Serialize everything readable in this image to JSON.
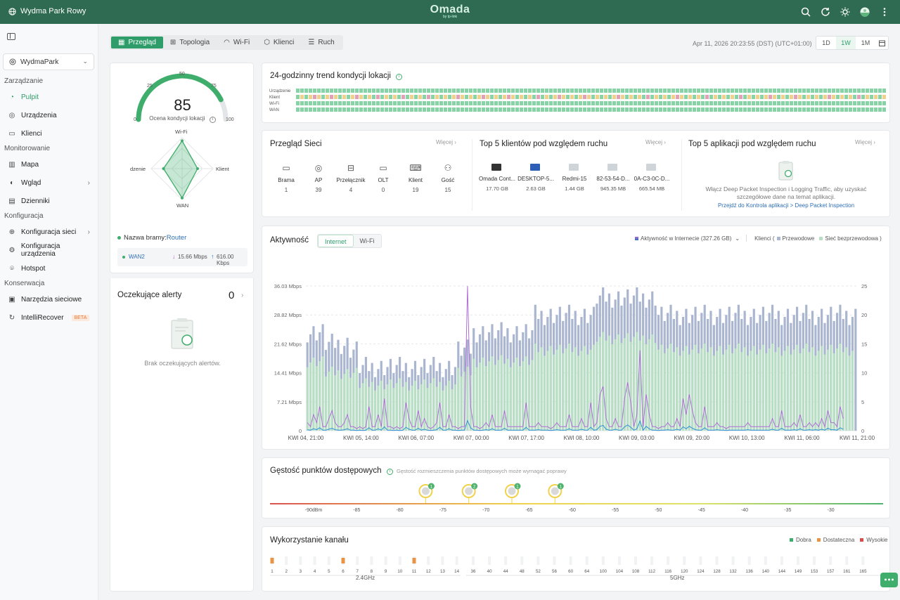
{
  "topbar": {
    "site_name": "Wydma Park Rowy",
    "logo": "Omada",
    "logo_sub": "by tp-link",
    "icons": [
      "search-icon",
      "refresh-icon",
      "theme-icon",
      "avatar",
      "more-icon"
    ]
  },
  "sidebar": {
    "site_select": "WydmaPark",
    "sections": [
      {
        "title": "Zarządzanie",
        "items": [
          {
            "label": "Pulpit",
            "icon": "dashboard-icon",
            "active": true
          },
          {
            "label": "Urządzenia",
            "icon": "devices-icon"
          },
          {
            "label": "Klienci",
            "icon": "clients-icon"
          }
        ]
      },
      {
        "title": "Monitorowanie",
        "items": [
          {
            "label": "Mapa",
            "icon": "map-icon"
          },
          {
            "label": "Wgląd",
            "icon": "insight-icon",
            "arrow": true
          },
          {
            "label": "Dzienniki",
            "icon": "logs-icon"
          }
        ]
      },
      {
        "title": "Konfiguracja",
        "items": [
          {
            "label": "Konfiguracja sieci",
            "icon": "network-config-icon",
            "arrow": true
          },
          {
            "label": "Konfiguracja urządzenia",
            "icon": "device-config-icon"
          },
          {
            "label": "Hotspot",
            "icon": "hotspot-icon"
          }
        ]
      },
      {
        "title": "Konserwacja",
        "items": [
          {
            "label": "Narzędzia sieciowe",
            "icon": "tools-icon"
          },
          {
            "label": "IntelliRecover",
            "icon": "recover-icon",
            "badge": "BETA"
          }
        ]
      }
    ]
  },
  "tabs": [
    {
      "label": "Przegląd",
      "icon": "overview-icon",
      "active": true
    },
    {
      "label": "Topologia",
      "icon": "topology-icon"
    },
    {
      "label": "Wi-Fi",
      "icon": "wifi-icon"
    },
    {
      "label": "Klienci",
      "icon": "clients-icon"
    },
    {
      "label": "Ruch",
      "icon": "traffic-icon"
    }
  ],
  "datetime": "Apr 11, 2026 20:23:55 (DST) (UTC+01:00)",
  "range_buttons": [
    "1D",
    "1W",
    "1M"
  ],
  "range_active": "1W",
  "health": {
    "score": "85",
    "score_value": 85,
    "score_label": "Ocena kondycji lokacji",
    "gauge_ticks": [
      "0",
      "25",
      "50",
      "75",
      "100"
    ],
    "radar_labels": {
      "top": "Wi-Fi",
      "right": "Klient",
      "bottom": "WAN",
      "left": "dzenie"
    },
    "gateway_label": "Nazwa bramy:",
    "gateway_name": "Router",
    "wan_name": "WAN2",
    "wan_down": "15.66 Mbps",
    "wan_up": "616.00 Kbps"
  },
  "alerts": {
    "title": "Oczekujące alerty",
    "count": "0",
    "empty": "Brak oczekujących alertów."
  },
  "trend": {
    "title": "24-godzinny trend kondycji lokacji",
    "rows": [
      "Urządzenie",
      "Klient",
      "Wi-Fi",
      "WAN"
    ]
  },
  "network_overview": {
    "title": "Przegląd Sieci",
    "more": "Więcej",
    "items": [
      {
        "label": "Brama",
        "value": "1",
        "icon": "gateway-icon"
      },
      {
        "label": "AP",
        "value": "39",
        "icon": "ap-icon"
      },
      {
        "label": "Przełącznik",
        "value": "4",
        "icon": "switch-icon"
      },
      {
        "label": "OLT",
        "value": "0",
        "icon": "olt-icon"
      },
      {
        "label": "Klient",
        "value": "19",
        "icon": "client-icon"
      },
      {
        "label": "Gość",
        "value": "15",
        "icon": "guest-icon"
      }
    ]
  },
  "top_clients": {
    "title": "Top 5 klientów pod względem ruchu",
    "more": "Więcej",
    "items": [
      {
        "name": "Omada Cont...",
        "value": "17.70 GB",
        "icon": "monitor-icon"
      },
      {
        "name": "DESKTOP-5...",
        "value": "2.63 GB",
        "icon": "desktop-icon"
      },
      {
        "name": "Redmi-15",
        "value": "1.44 GB",
        "icon": "device-icon"
      },
      {
        "name": "82-53-54-D...",
        "value": "945.35 MB",
        "icon": "device-icon"
      },
      {
        "name": "0A-C3-0C-D...",
        "value": "665.54 MB",
        "icon": "device-icon"
      }
    ]
  },
  "top_apps": {
    "title": "Top 5 aplikacji pod względem ruchu",
    "more": "Więcej",
    "text": "Włącz Deep Packet Inspection i Logging Traffic, aby uzyskać szczegółowe dane na temat aplikacji.",
    "link": "Przejdź do Kontrola aplikacji > Deep Packet Inspection"
  },
  "activity": {
    "title": "Aktywność",
    "tabs": [
      "Internet",
      "Wi-Fi"
    ],
    "active_tab": "Internet",
    "legend_internet": "Aktywność w Internecie (327.26 GB)",
    "legend_clients": "Klienci (",
    "legend_wired": "Przewodowe",
    "legend_wireless": "Sieć bezprzewodowa )"
  },
  "chart_data": {
    "type": "bar",
    "title": "",
    "x_ticks": [
      "KWI 04, 21:00",
      "KWI 05, 14:00",
      "KWI 06, 07:00",
      "KWI 07, 00:00",
      "KWI 07, 17:00",
      "KWI 08, 10:00",
      "KWI 09, 03:00",
      "KWI 09, 20:00",
      "KWI 10, 13:00",
      "KWI 11, 06:00",
      "KWI 11, 21:00"
    ],
    "y_left_ticks": [
      "0",
      "7.21 Mbps",
      "14.41 Mbps",
      "21.62 Mbps",
      "28.82 Mbps",
      "36.03 Mbps"
    ],
    "y_right_ticks": [
      "0",
      "5",
      "10",
      "15",
      "20",
      "25"
    ],
    "y_left_max_mbps": 36.03,
    "y_right_max": 25,
    "series": [
      {
        "name": "Przewodowe",
        "color": "#aab6d0",
        "values": [
          17,
          17,
          17,
          17,
          17,
          17,
          15,
          15,
          15,
          15,
          15,
          15,
          15,
          15,
          14,
          14,
          14,
          11,
          11,
          11,
          11,
          11,
          11,
          11,
          11,
          11,
          11,
          11,
          11,
          11,
          11,
          11,
          11,
          11,
          11,
          11,
          11,
          11,
          11,
          11,
          11,
          11,
          11,
          11,
          11,
          11,
          11,
          11,
          11,
          14,
          14,
          14,
          14,
          14,
          17,
          17,
          17,
          17,
          17,
          17,
          17,
          17,
          17,
          17,
          17,
          17,
          17,
          17,
          17,
          17,
          17,
          17,
          17,
          17,
          20,
          20,
          20,
          20,
          20,
          20,
          20,
          20,
          20,
          20,
          20,
          20,
          20,
          20,
          20,
          20,
          20,
          20,
          20,
          20,
          23,
          23,
          23,
          23,
          23,
          23,
          23,
          23,
          23,
          23,
          23,
          23,
          23,
          23,
          23,
          23,
          23,
          23,
          23,
          23,
          20,
          20,
          20,
          20,
          20,
          20,
          20,
          20,
          20,
          20,
          20,
          20,
          20,
          20,
          20,
          20,
          20,
          20,
          20,
          20,
          20,
          20,
          20,
          20,
          20,
          20,
          20,
          20,
          20,
          20,
          20,
          20,
          20,
          20,
          20,
          20,
          20,
          20,
          20,
          20,
          20,
          20,
          20,
          20,
          20,
          20,
          20,
          20,
          20,
          20,
          20,
          20,
          20,
          20,
          20,
          20,
          20,
          20,
          20,
          20,
          20,
          20,
          20,
          20,
          20
        ]
      },
      {
        "name": "Sieć bezprzewodowa",
        "color": "#b8dfc4",
        "values": [
          12,
          12,
          12,
          12,
          12,
          12,
          10,
          10,
          10,
          10,
          10,
          10,
          10,
          10,
          10,
          10,
          10,
          8,
          8,
          8,
          8,
          8,
          8,
          8,
          8,
          8,
          8,
          8,
          8,
          8,
          8,
          8,
          8,
          8,
          8,
          8,
          8,
          8,
          8,
          8,
          8,
          8,
          8,
          8,
          8,
          8,
          8,
          8,
          8,
          10,
          10,
          10,
          10,
          10,
          12,
          12,
          12,
          12,
          12,
          12,
          12,
          12,
          12,
          12,
          12,
          12,
          12,
          12,
          12,
          12,
          12,
          12,
          12,
          12,
          14,
          14,
          14,
          14,
          14,
          14,
          14,
          14,
          14,
          14,
          14,
          14,
          14,
          14,
          14,
          14,
          14,
          14,
          14,
          14,
          16,
          16,
          16,
          16,
          16,
          16,
          16,
          16,
          16,
          16,
          16,
          16,
          16,
          16,
          16,
          16,
          16,
          16,
          16,
          16,
          14,
          14,
          14,
          14,
          14,
          14,
          14,
          14,
          14,
          14,
          14,
          14,
          14,
          14,
          14,
          14,
          14,
          14,
          14,
          14,
          14,
          14,
          14,
          14,
          14,
          14,
          14,
          14,
          14,
          14,
          14,
          14,
          14,
          14,
          14,
          14,
          14,
          14,
          14,
          14,
          14,
          14,
          14,
          14,
          14,
          14,
          14,
          14,
          14,
          14,
          14,
          14,
          14,
          14,
          14,
          14,
          14,
          14,
          14,
          14,
          14,
          14,
          14,
          14
        ]
      },
      {
        "name": "Aktywność w Internecie",
        "color": "#b06fd6",
        "values": [
          2,
          1,
          4,
          2,
          6,
          1,
          1,
          3,
          5,
          2,
          1,
          1,
          2,
          4,
          1,
          1,
          0.5,
          1,
          0.5,
          1,
          6,
          1,
          1,
          4,
          1,
          8,
          1,
          1,
          0.5,
          1,
          0.5,
          1,
          7,
          3,
          1,
          1,
          5,
          1,
          3,
          1,
          0.5,
          1,
          2,
          7,
          1,
          1,
          4,
          1,
          1,
          0.5,
          1,
          1,
          36,
          6,
          1,
          1,
          0.5,
          1,
          2,
          1,
          4,
          1,
          1,
          1,
          5,
          1,
          1,
          1,
          1,
          1,
          1,
          7,
          1,
          1,
          1,
          2,
          1,
          1,
          1,
          0.5,
          1,
          2,
          1,
          1,
          1,
          4,
          1,
          1,
          1,
          3,
          1,
          1,
          7,
          1,
          2,
          9,
          11,
          3,
          1,
          1,
          3,
          1,
          1,
          8,
          12,
          7,
          1,
          4,
          20,
          1,
          9,
          4,
          1,
          1,
          0.5,
          1,
          1,
          2,
          1,
          1,
          3,
          1,
          8,
          4,
          9,
          5,
          2,
          1,
          1,
          6,
          1,
          1,
          1,
          2,
          1,
          1,
          0.5,
          1,
          1,
          1,
          1,
          1,
          1,
          2,
          1,
          1,
          1,
          1,
          1,
          1,
          1,
          3,
          1,
          1,
          5,
          1,
          1,
          1,
          2,
          1,
          4,
          1,
          1,
          2,
          1,
          2,
          1,
          3,
          1,
          5,
          2,
          2,
          1,
          6,
          3
        ]
      }
    ]
  },
  "ap_density": {
    "title": "Gęstość punktów dostępowych",
    "hint": "Gęstość rozmieszczenia punktów dostępowych może wymagać poprawy",
    "ticks": [
      "-90dBm",
      "-85",
      "-80",
      "-75",
      "-70",
      "-65",
      "-60",
      "-55",
      "-50",
      "-45",
      "-40",
      "-35",
      "-30"
    ],
    "markers": [
      {
        "dbm": -77,
        "count": "1"
      },
      {
        "dbm": -72,
        "count": "2"
      },
      {
        "dbm": -67,
        "count": "1"
      },
      {
        "dbm": -62,
        "count": "1"
      }
    ]
  },
  "channel_usage": {
    "title": "Wykorzystanie kanału",
    "legend": [
      {
        "label": "Dobra",
        "color": "#3cae6e"
      },
      {
        "label": "Dostateczna",
        "color": "#e89444"
      },
      {
        "label": "Wysokie",
        "color": "#d94d4d"
      }
    ],
    "band_24": "2.4GHz",
    "band_5": "5GHz",
    "channels_24": [
      "1",
      "2",
      "3",
      "4",
      "5",
      "6",
      "7",
      "8",
      "9",
      "10",
      "11",
      "12",
      "13",
      "14"
    ],
    "channels_5": [
      "36",
      "40",
      "44",
      "48",
      "52",
      "56",
      "60",
      "64",
      "100",
      "104",
      "108",
      "112",
      "116",
      "120",
      "124",
      "128",
      "132",
      "136",
      "140",
      "144",
      "149",
      "153",
      "157",
      "161",
      "165"
    ],
    "orange_channels": [
      "1",
      "6",
      "11"
    ]
  }
}
